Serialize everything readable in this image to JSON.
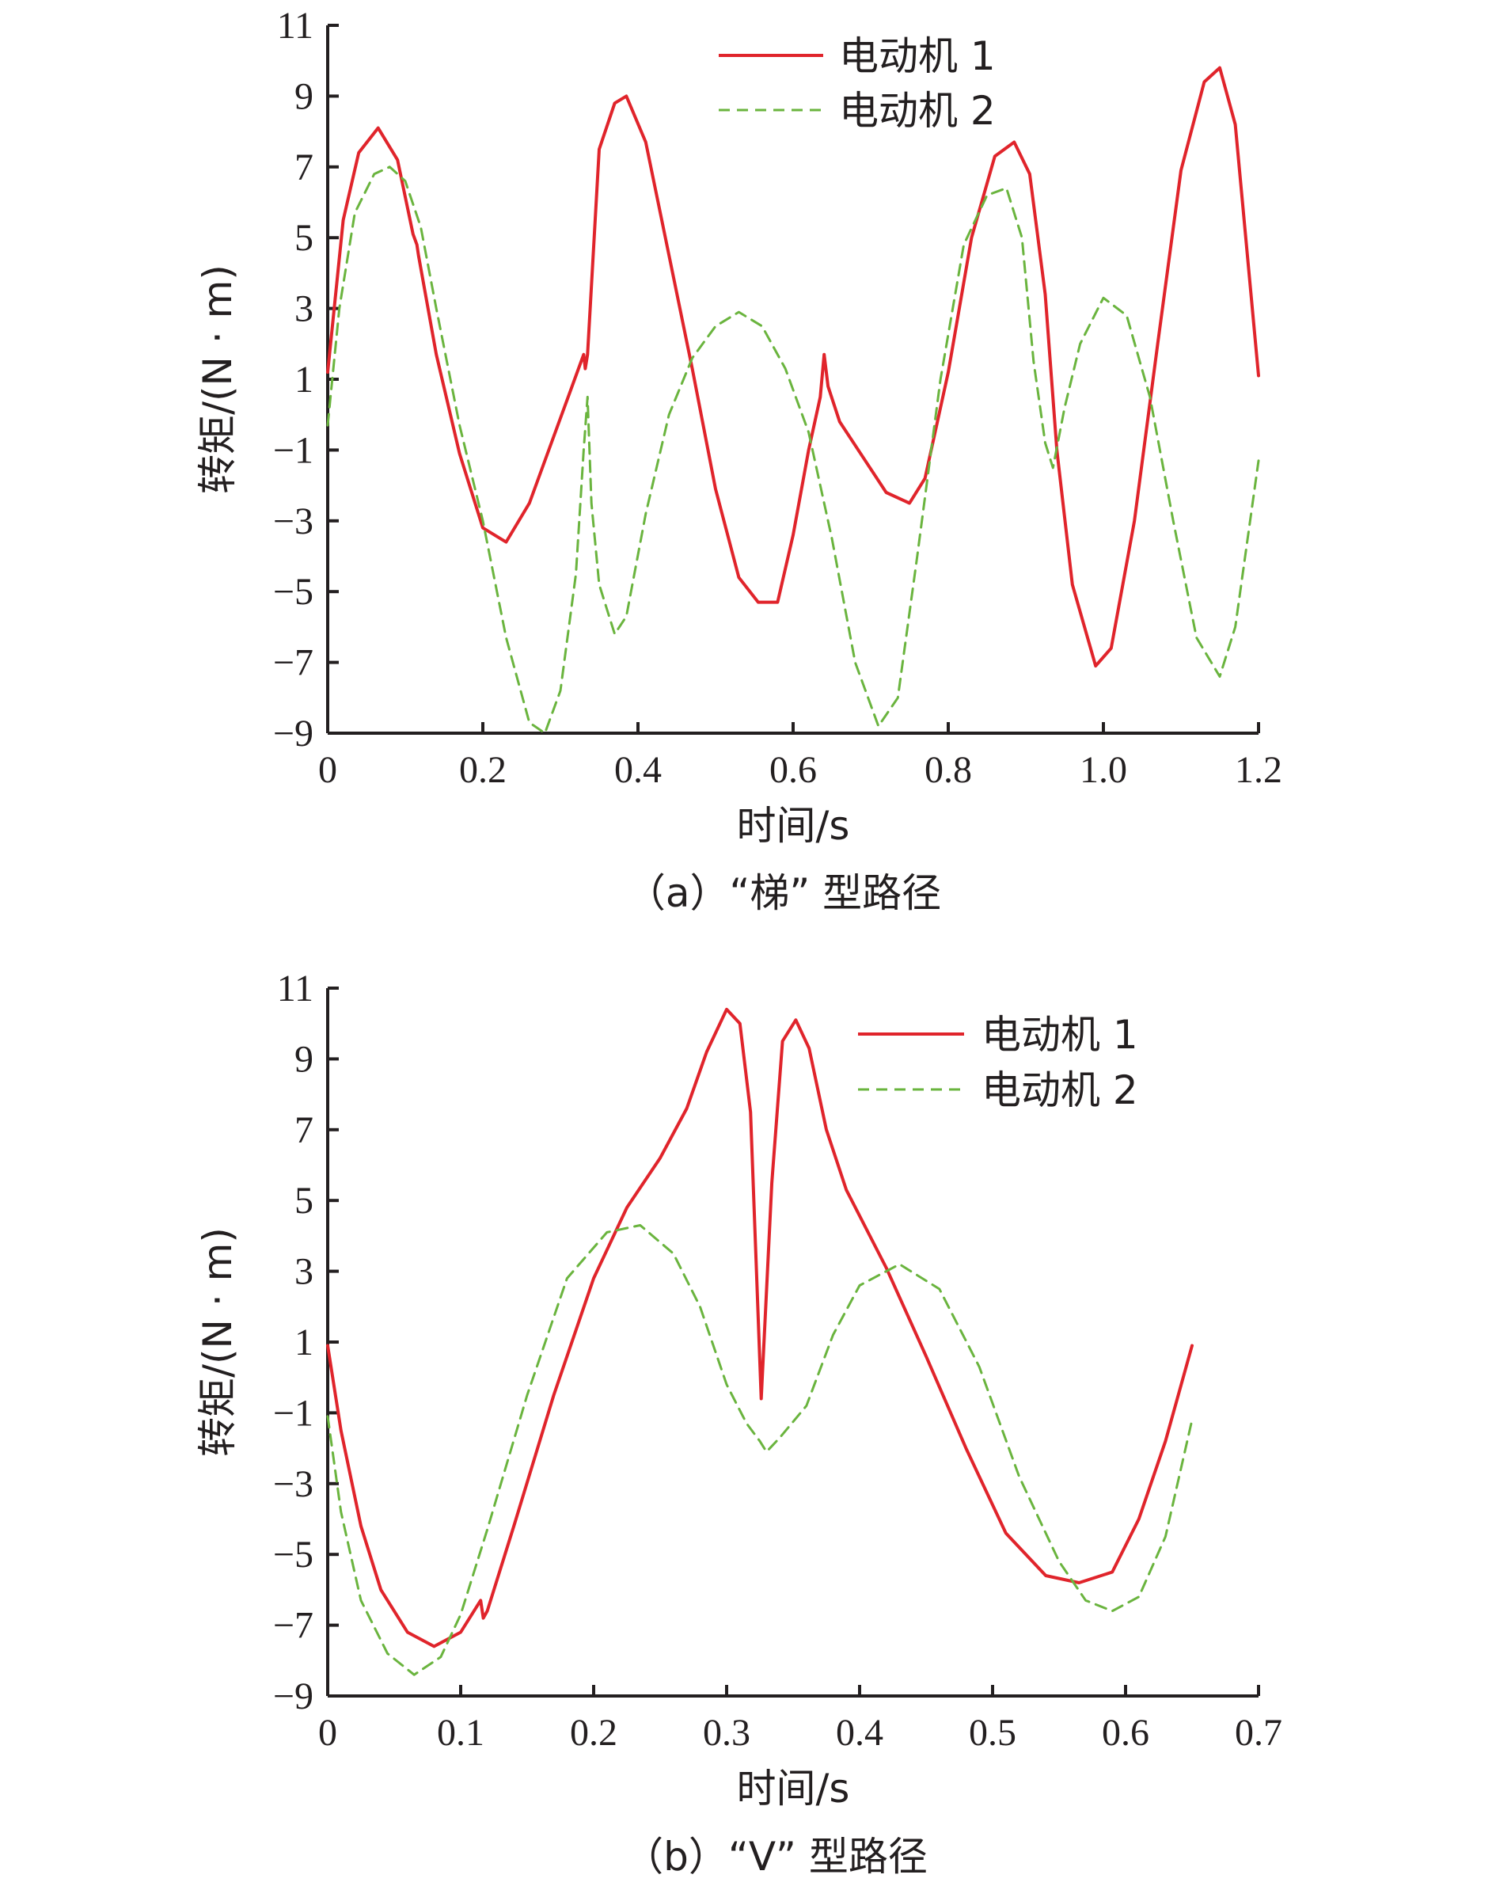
{
  "colors": {
    "motor1": "#e0242b",
    "motor2": "#6ab43e",
    "axis": "#231f20"
  },
  "chart_data": [
    {
      "type": "line",
      "caption": "（a）“梯” 型路径",
      "xlabel": "时间/s",
      "ylabel": "转矩/(N · m)",
      "xlim": [
        0,
        1.2
      ],
      "ylim": [
        -9,
        11
      ],
      "xticks": [
        "0",
        "0.2",
        "0.4",
        "0.6",
        "0.8",
        "1.0",
        "1.2"
      ],
      "xtick_values": [
        0,
        0.2,
        0.4,
        0.6,
        0.8,
        1.0,
        1.2
      ],
      "yticks": [
        "11",
        "9",
        "7",
        "5",
        "3",
        "1",
        "−1",
        "−3",
        "−5",
        "−7",
        "−9"
      ],
      "ytick_values": [
        11,
        9,
        7,
        5,
        3,
        1,
        -1,
        -3,
        -5,
        -7,
        -9
      ],
      "legend_position": "top-right",
      "series": [
        {
          "name": "电动机 1",
          "style": "solid",
          "x": [
            0,
            0.02,
            0.04,
            0.065,
            0.09,
            0.11,
            0.115,
            0.117,
            0.14,
            0.17,
            0.2,
            0.23,
            0.26,
            0.29,
            0.31,
            0.33,
            0.332,
            0.335,
            0.35,
            0.37,
            0.385,
            0.41,
            0.44,
            0.47,
            0.5,
            0.53,
            0.555,
            0.58,
            0.6,
            0.62,
            0.635,
            0.64,
            0.645,
            0.66,
            0.69,
            0.72,
            0.75,
            0.77,
            0.8,
            0.83,
            0.86,
            0.885,
            0.905,
            0.925,
            0.94,
            0.96,
            0.99,
            1.01,
            1.04,
            1.07,
            1.1,
            1.13,
            1.15,
            1.17,
            1.2
          ],
          "y": [
            1.2,
            5.5,
            7.4,
            8.1,
            7.2,
            5.1,
            4.8,
            4.5,
            1.7,
            -1.1,
            -3.2,
            -3.6,
            -2.5,
            -0.7,
            0.5,
            1.7,
            1.3,
            1.7,
            7.5,
            8.8,
            9.0,
            7.7,
            4.5,
            1.3,
            -2.1,
            -4.6,
            -5.3,
            -5.3,
            -3.4,
            -1.0,
            0.5,
            1.7,
            0.8,
            -0.2,
            -1.2,
            -2.2,
            -2.5,
            -1.8,
            1.2,
            5.0,
            7.3,
            7.7,
            6.8,
            3.4,
            -1.0,
            -4.8,
            -7.1,
            -6.6,
            -3.0,
            2.0,
            6.9,
            9.4,
            9.8,
            8.2,
            1.1
          ]
        },
        {
          "name": "电动机 2",
          "style": "dashed",
          "x": [
            0,
            0.015,
            0.035,
            0.06,
            0.08,
            0.1,
            0.12,
            0.14,
            0.17,
            0.2,
            0.23,
            0.26,
            0.28,
            0.3,
            0.32,
            0.33,
            0.335,
            0.34,
            0.35,
            0.37,
            0.385,
            0.41,
            0.44,
            0.47,
            0.5,
            0.53,
            0.56,
            0.59,
            0.62,
            0.65,
            0.68,
            0.71,
            0.735,
            0.76,
            0.79,
            0.82,
            0.85,
            0.875,
            0.895,
            0.91,
            0.925,
            0.935,
            0.95,
            0.97,
            1.0,
            1.03,
            1.06,
            1.09,
            1.12,
            1.15,
            1.17,
            1.2
          ],
          "y": [
            -0.3,
            3.0,
            5.7,
            6.8,
            7.0,
            6.6,
            5.3,
            3.0,
            -0.3,
            -3.0,
            -6.3,
            -8.7,
            -9.0,
            -7.8,
            -4.5,
            -1.0,
            0.5,
            -2.5,
            -4.8,
            -6.2,
            -5.7,
            -2.8,
            0.0,
            1.6,
            2.5,
            2.9,
            2.5,
            1.3,
            -0.5,
            -3.5,
            -7.0,
            -8.8,
            -8.0,
            -4.0,
            1.0,
            4.8,
            6.2,
            6.4,
            5.0,
            1.5,
            -0.8,
            -1.5,
            0.2,
            2.0,
            3.3,
            2.8,
            0.5,
            -3.0,
            -6.3,
            -7.4,
            -6.0,
            -1.3
          ]
        }
      ]
    },
    {
      "type": "line",
      "caption": "（b）“V” 型路径",
      "xlabel": "时间/s",
      "ylabel": "转矩/(N · m)",
      "xlim": [
        0,
        0.7
      ],
      "ylim": [
        -9,
        11
      ],
      "xticks": [
        "0",
        "0.1",
        "0.2",
        "0.3",
        "0.4",
        "0.5",
        "0.6",
        "0.7"
      ],
      "xtick_values": [
        0,
        0.1,
        0.2,
        0.3,
        0.4,
        0.5,
        0.6,
        0.7
      ],
      "yticks": [
        "11",
        "9",
        "7",
        "5",
        "3",
        "1",
        "−1",
        "−3",
        "−5",
        "−7",
        "−9"
      ],
      "ytick_values": [
        11,
        9,
        7,
        5,
        3,
        1,
        -1,
        -3,
        -5,
        -7,
        -9
      ],
      "legend_position": "top-right",
      "series": [
        {
          "name": "电动机 1",
          "style": "solid",
          "x": [
            0,
            0.01,
            0.025,
            0.04,
            0.06,
            0.08,
            0.1,
            0.115,
            0.117,
            0.12,
            0.14,
            0.17,
            0.2,
            0.225,
            0.25,
            0.27,
            0.285,
            0.3,
            0.31,
            0.318,
            0.326,
            0.334,
            0.342,
            0.352,
            0.362,
            0.375,
            0.39,
            0.42,
            0.45,
            0.48,
            0.51,
            0.54,
            0.565,
            0.59,
            0.61,
            0.63,
            0.65
          ],
          "y": [
            0.9,
            -1.5,
            -4.2,
            -6.0,
            -7.2,
            -7.6,
            -7.2,
            -6.3,
            -6.8,
            -6.6,
            -4.2,
            -0.5,
            2.8,
            4.8,
            6.2,
            7.6,
            9.2,
            10.4,
            10.0,
            7.5,
            -0.6,
            5.5,
            9.5,
            10.1,
            9.3,
            7.0,
            5.3,
            3.1,
            0.6,
            -2.0,
            -4.4,
            -5.6,
            -5.8,
            -5.5,
            -4.0,
            -1.8,
            0.9
          ]
        },
        {
          "name": "电动机 2",
          "style": "dashed",
          "x": [
            0,
            0.01,
            0.025,
            0.045,
            0.065,
            0.085,
            0.1,
            0.12,
            0.15,
            0.18,
            0.21,
            0.235,
            0.26,
            0.28,
            0.3,
            0.315,
            0.325,
            0.33,
            0.34,
            0.36,
            0.38,
            0.4,
            0.43,
            0.46,
            0.49,
            0.52,
            0.55,
            0.57,
            0.59,
            0.61,
            0.63,
            0.65
          ],
          "y": [
            -1.1,
            -3.8,
            -6.3,
            -7.8,
            -8.4,
            -7.9,
            -6.7,
            -4.3,
            -0.5,
            2.8,
            4.1,
            4.3,
            3.5,
            2.0,
            -0.2,
            -1.3,
            -1.8,
            -2.1,
            -1.7,
            -0.8,
            1.2,
            2.6,
            3.2,
            2.5,
            0.3,
            -2.8,
            -5.2,
            -6.3,
            -6.6,
            -6.2,
            -4.5,
            -1.2
          ]
        }
      ]
    }
  ]
}
